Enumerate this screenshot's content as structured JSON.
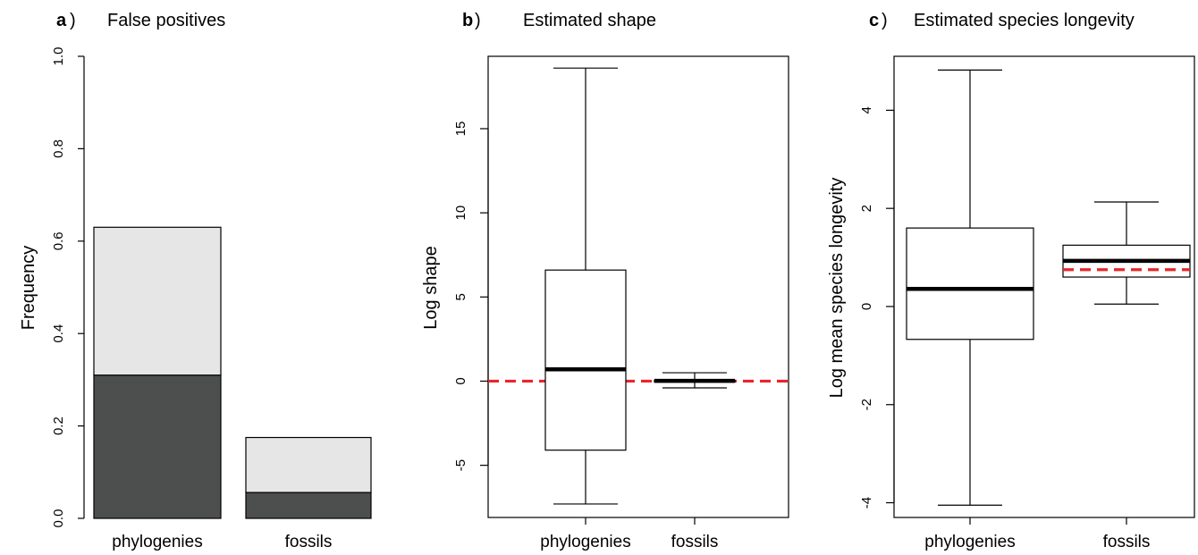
{
  "panels": [
    {
      "label": "a",
      "title": "False positives",
      "ylabel": "Frequency",
      "xlabel": "",
      "yticks": [
        "0.0",
        "0.2",
        "0.4",
        "0.6",
        "0.8",
        "1.0"
      ],
      "categories": [
        "phylogenies",
        "fossils"
      ]
    },
    {
      "label": "b",
      "title": "Estimated shape",
      "ylabel": "Log shape",
      "xlabel": "",
      "yticks": [
        "-5",
        "0",
        "5",
        "10",
        "15"
      ],
      "categories": [
        "phylogenies",
        "fossils"
      ]
    },
    {
      "label": "c",
      "title": "Estimated species longevity",
      "ylabel": "Log mean species longevity",
      "xlabel": "",
      "yticks": [
        "-4",
        "-2",
        "0",
        "2",
        "4"
      ],
      "categories": [
        "phylogenies",
        "fossils"
      ]
    }
  ],
  "chart_data": [
    {
      "type": "bar",
      "stacked": true,
      "title": "False positives",
      "ylabel": "Frequency",
      "ylim": [
        0,
        1
      ],
      "categories": [
        "phylogenies",
        "fossils"
      ],
      "series": [
        {
          "values": [
            0.31,
            0.056
          ],
          "color": "#4d4f4e"
        },
        {
          "values": [
            0.32,
            0.119
          ],
          "color": "#e6e6e6"
        }
      ],
      "totals": [
        0.63,
        0.175
      ]
    },
    {
      "type": "box",
      "title": "Estimated shape",
      "ylabel": "Log shape",
      "ylim": [
        -8.1,
        19.3
      ],
      "categories": [
        "phylogenies",
        "fossils"
      ],
      "boxes": [
        {
          "whisker_low": -7.3,
          "q1": -4.1,
          "median": 0.7,
          "q3": 6.6,
          "whisker_high": 18.6
        },
        {
          "whisker_low": -0.4,
          "q1": -0.06,
          "median": 0.02,
          "q3": 0.06,
          "whisker_high": 0.5
        }
      ],
      "reference_line": {
        "value": 0,
        "color": "#e8262b",
        "style": "dashed"
      }
    },
    {
      "type": "box",
      "title": "Estimated species longevity",
      "ylabel": "Log mean species longevity",
      "ylim": [
        -4.3,
        5.1
      ],
      "categories": [
        "phylogenies",
        "fossils"
      ],
      "boxes": [
        {
          "whisker_low": -4.05,
          "q1": -0.67,
          "median": 0.36,
          "q3": 1.6,
          "whisker_high": 4.82
        },
        {
          "whisker_low": 0.05,
          "q1": 0.6,
          "median": 0.93,
          "q3": 1.25,
          "whisker_high": 2.13
        }
      ],
      "reference_lines": [
        {
          "category": "fossils",
          "value": 0.75,
          "color": "#e8262b",
          "style": "dashed"
        }
      ]
    }
  ]
}
